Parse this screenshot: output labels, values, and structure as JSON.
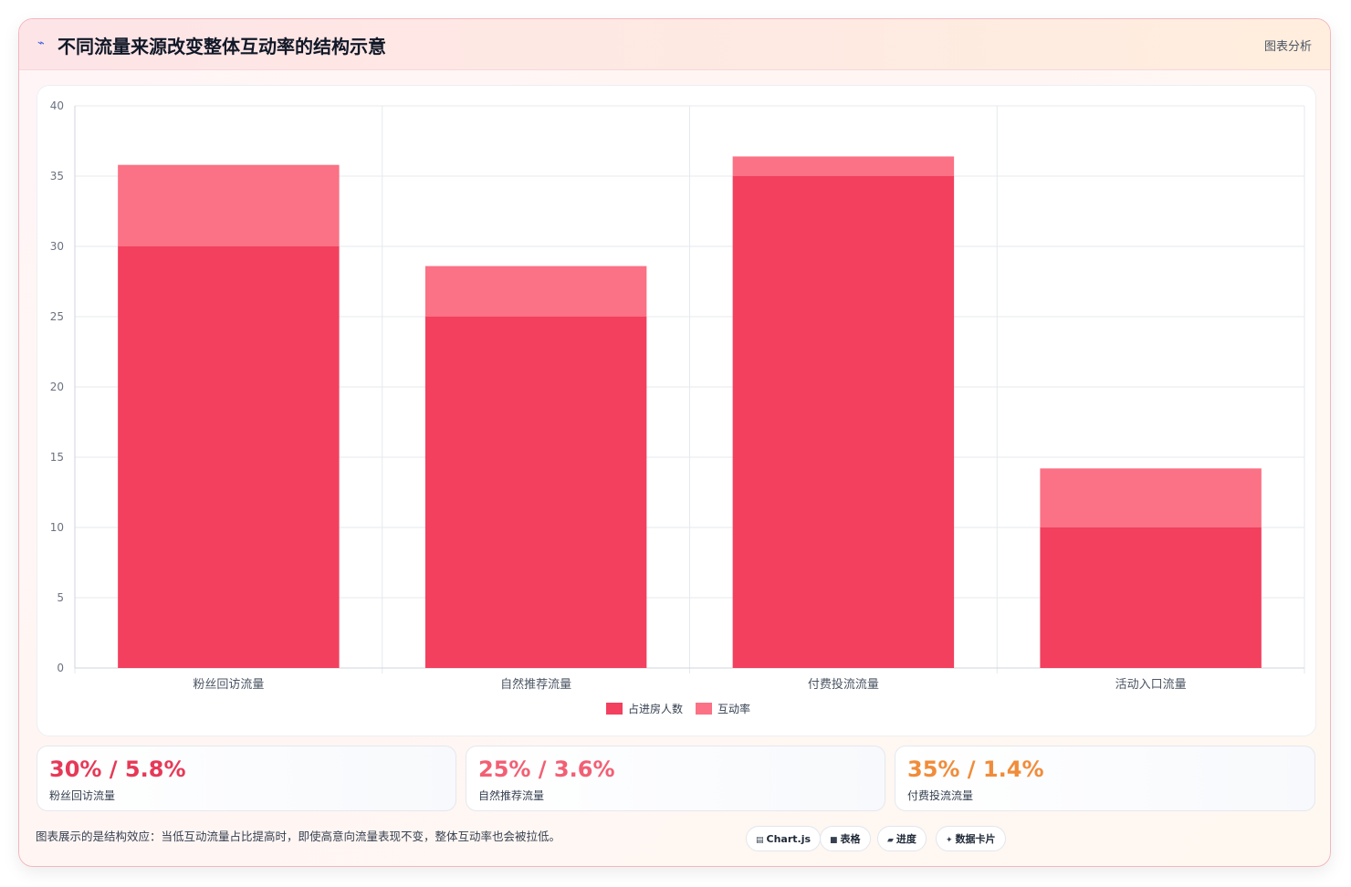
{
  "header": {
    "title": "不同流量来源改变整体互动率的结构示意",
    "tag": "图表分析",
    "icon": "trend-icon"
  },
  "chart_data": {
    "type": "bar",
    "stacked": true,
    "categories": [
      "粉丝回访流量",
      "自然推荐流量",
      "付费投流流量",
      "活动入口流量"
    ],
    "series": [
      {
        "name": "占进房人数",
        "values": [
          30,
          25,
          35,
          10
        ],
        "color": "#f2405e"
      },
      {
        "name": "互动率",
        "values": [
          5.8,
          3.6,
          1.4,
          4.2
        ],
        "color": "#fb7185"
      }
    ],
    "ylim": [
      0,
      40
    ],
    "yticks": [
      0,
      5,
      10,
      15,
      20,
      25,
      30,
      35,
      40
    ],
    "grid": true,
    "legend": "bottom"
  },
  "stats": [
    {
      "value": "30% / 5.8%",
      "label": "粉丝回访流量",
      "color": "#e63957"
    },
    {
      "value": "25% / 3.6%",
      "label": "自然推荐流量",
      "color": "#f25f74"
    },
    {
      "value": "35% / 1.4%",
      "label": "付费投流流量",
      "color": "#f08c3a"
    }
  ],
  "footer": {
    "note": "图表展示的是结构效应：当低互动流量占比提高时，即使高意向流量表现不变，整体互动率也会被拉低。",
    "pills": [
      {
        "icon": "chart-icon",
        "glyph": "▤",
        "label": "Chart.js"
      },
      {
        "icon": "table-icon",
        "glyph": "■",
        "label": "表格"
      },
      {
        "icon": "progress-icon",
        "glyph": "▰",
        "label": "进度"
      },
      {
        "icon": "sparkle-icon",
        "glyph": "✦",
        "label": "数据卡片"
      }
    ]
  }
}
